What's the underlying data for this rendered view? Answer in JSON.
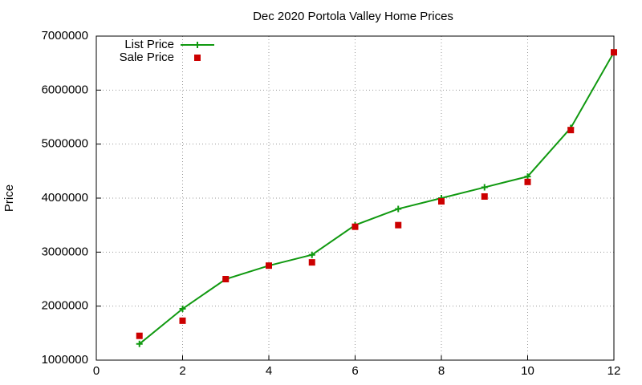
{
  "chart_data": {
    "type": "line",
    "title": "Dec 2020 Portola Valley Home Prices",
    "y_label": "Price",
    "x": [
      1,
      2,
      3,
      4,
      5,
      6,
      7,
      8,
      9,
      10,
      11,
      12
    ],
    "series": [
      {
        "name": "List Price",
        "color": "#109910",
        "style": "linespoints",
        "values": [
          1300000,
          1950000,
          2500000,
          2750000,
          2950000,
          3500000,
          3800000,
          4000000,
          4200000,
          4400000,
          5300000,
          6700000
        ]
      },
      {
        "name": "Sale Price",
        "color": "#cc0000",
        "style": "points",
        "values": [
          1450000,
          1730000,
          2500000,
          2750000,
          2810000,
          3470000,
          3500000,
          3940000,
          4030000,
          4300000,
          5260000,
          6700000
        ]
      }
    ],
    "xlim": [
      0,
      12
    ],
    "xticks": [
      0,
      2,
      4,
      6,
      8,
      10,
      12
    ],
    "ylim": [
      1000000,
      7000000
    ],
    "yticks": [
      1000000,
      2000000,
      3000000,
      4000000,
      5000000,
      6000000,
      7000000
    ],
    "grid": true,
    "legend": "top-left"
  }
}
